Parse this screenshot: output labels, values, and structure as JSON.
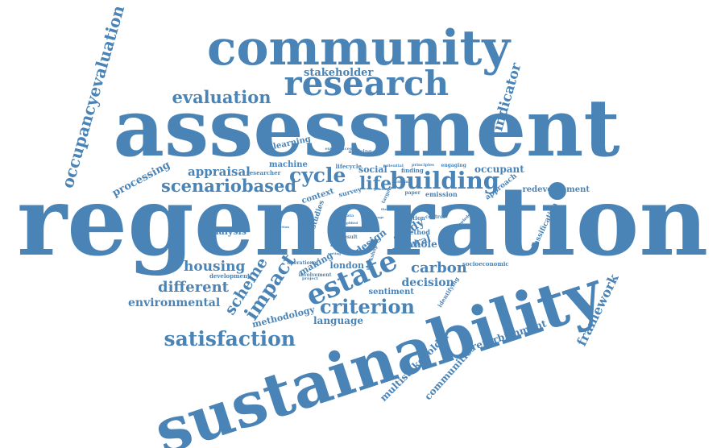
{
  "theme": {
    "word_color": "#4a84b7",
    "background": "#ffffff"
  },
  "words": [
    {
      "text": "regeneration"
    },
    {
      "text": "assessment"
    },
    {
      "text": "sustainability"
    },
    {
      "text": "community"
    },
    {
      "text": "research"
    },
    {
      "text": "evaluation"
    },
    {
      "text": "occupancyevaluation"
    },
    {
      "text": "stakeholder"
    },
    {
      "text": "indicator"
    },
    {
      "text": "building"
    },
    {
      "text": "cycle"
    },
    {
      "text": "life"
    },
    {
      "text": "scenariobased"
    },
    {
      "text": "appraisal"
    },
    {
      "text": "processing"
    },
    {
      "text": "machine"
    },
    {
      "text": "learning"
    },
    {
      "text": "social"
    },
    {
      "text": "occupant"
    },
    {
      "text": "redevelopment"
    },
    {
      "text": "estate"
    },
    {
      "text": "impact"
    },
    {
      "text": "scheme"
    },
    {
      "text": "housing"
    },
    {
      "text": "carbon"
    },
    {
      "text": "criterion"
    },
    {
      "text": "satisfaction"
    },
    {
      "text": "different"
    },
    {
      "text": "environmental"
    },
    {
      "text": "decision"
    },
    {
      "text": "framework"
    },
    {
      "text": "refurbishment"
    },
    {
      "text": "multistakeholder"
    },
    {
      "text": "communities"
    },
    {
      "text": "language"
    },
    {
      "text": "methodology"
    },
    {
      "text": "analysis"
    },
    {
      "text": "study"
    },
    {
      "text": "case"
    },
    {
      "text": "design"
    },
    {
      "text": "natural"
    },
    {
      "text": "whole"
    },
    {
      "text": "london"
    },
    {
      "text": "making"
    },
    {
      "text": "sentiment"
    },
    {
      "text": "method"
    },
    {
      "text": "approach"
    },
    {
      "text": "classification"
    },
    {
      "text": "emission"
    },
    {
      "text": "context"
    },
    {
      "text": "survey"
    },
    {
      "text": "studies"
    },
    {
      "text": "development"
    },
    {
      "text": "socioeconomic"
    },
    {
      "text": "identifying"
    },
    {
      "text": "option"
    },
    {
      "text": "control"
    },
    {
      "text": "paper"
    },
    {
      "text": "finding"
    },
    {
      "text": "engaging"
    },
    {
      "text": "lifecycle"
    },
    {
      "text": "applying"
    },
    {
      "text": "researcher"
    },
    {
      "text": "knowledge"
    },
    {
      "text": "result"
    },
    {
      "text": "categories"
    },
    {
      "text": "workshop"
    },
    {
      "text": "involvement"
    },
    {
      "text": "operational"
    },
    {
      "text": "project"
    },
    {
      "text": "ranging"
    },
    {
      "text": "potential"
    },
    {
      "text": "system"
    },
    {
      "text": "data"
    },
    {
      "text": "simplified"
    },
    {
      "text": "target"
    },
    {
      "text": "principles"
    },
    {
      "text": "experiences"
    },
    {
      "text": "priorities"
    },
    {
      "text": "collection"
    },
    {
      "text": "selection"
    },
    {
      "text": "experiment"
    },
    {
      "text": "sorting"
    },
    {
      "text": "usage"
    },
    {
      "text": "theme"
    },
    {
      "text": "term"
    },
    {
      "text": "type"
    }
  ]
}
